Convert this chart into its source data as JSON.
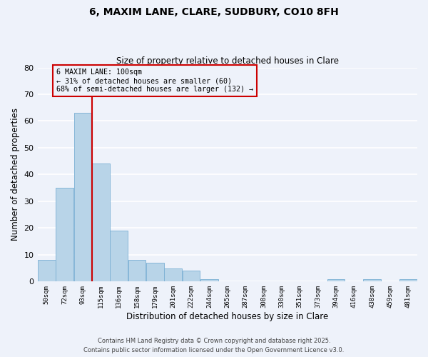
{
  "title": "6, MAXIM LANE, CLARE, SUDBURY, CO10 8FH",
  "subtitle": "Size of property relative to detached houses in Clare",
  "xlabel": "Distribution of detached houses by size in Clare",
  "ylabel": "Number of detached properties",
  "bar_labels": [
    "50sqm",
    "72sqm",
    "93sqm",
    "115sqm",
    "136sqm",
    "158sqm",
    "179sqm",
    "201sqm",
    "222sqm",
    "244sqm",
    "265sqm",
    "287sqm",
    "308sqm",
    "330sqm",
    "351sqm",
    "373sqm",
    "394sqm",
    "416sqm",
    "438sqm",
    "459sqm",
    "481sqm"
  ],
  "bar_values": [
    8,
    35,
    63,
    44,
    19,
    8,
    7,
    5,
    4,
    1,
    0,
    0,
    0,
    0,
    0,
    0,
    1,
    0,
    1,
    0,
    1
  ],
  "bar_color": "#b8d4e8",
  "bar_edge_color": "#7aafd4",
  "bg_color": "#eef2fa",
  "grid_color": "#ffffff",
  "vline_color": "#cc0000",
  "annotation_text": "6 MAXIM LANE: 100sqm\n← 31% of detached houses are smaller (60)\n68% of semi-detached houses are larger (132) →",
  "annotation_box_edge": "#cc0000",
  "ylim": [
    0,
    80
  ],
  "yticks": [
    0,
    10,
    20,
    30,
    40,
    50,
    60,
    70,
    80
  ],
  "footer1": "Contains HM Land Registry data © Crown copyright and database right 2025.",
  "footer2": "Contains public sector information licensed under the Open Government Licence v3.0."
}
